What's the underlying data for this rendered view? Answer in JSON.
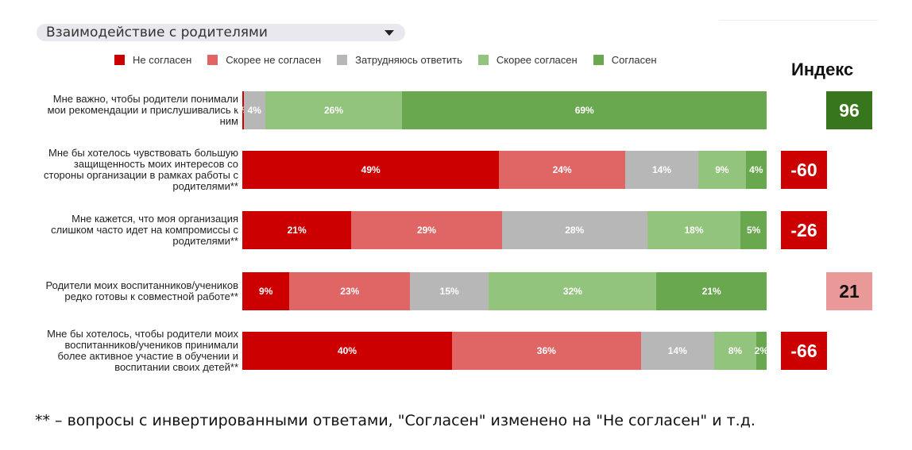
{
  "filter": {
    "selected": "Взаимодействие с родителями"
  },
  "colors": {
    "strongly_disagree": "#cc0000",
    "disagree": "#e06666",
    "neutral": "#b7b7b7",
    "agree": "#93c47d",
    "strongly_agree": "#6aa84f"
  },
  "chart_data": {
    "type": "bar",
    "orientation": "horizontal",
    "stacked": true,
    "normalized": true,
    "legend_position": "top",
    "grid": false,
    "categories": [
      "Мне важно, чтобы родители понимали мои рекомендации и прислушивались к ним",
      "Мне бы хотелось чувствовать большую защищенность моих интересов со стороны организации в рамках работы с родителями**",
      "Мне кажется, что моя организация слишком часто идет на компромиссы с родителями**",
      "Родители моих воспитанников/учеников редко готовы к совместной работе**",
      "Мне бы хотелось, чтобы родители моих воспитанников/учеников принимали более активное участие в обучении и воспитании своих детей**"
    ],
    "series": [
      {
        "name": "Не согласен",
        "color": "#cc0000",
        "values": [
          0,
          49,
          21,
          9,
          40
        ]
      },
      {
        "name": "Скорее не согласен",
        "color": "#e06666",
        "values": [
          0,
          24,
          29,
          23,
          36
        ]
      },
      {
        "name": "Затрудняюсь ответить",
        "color": "#b7b7b7",
        "values": [
          4,
          14,
          28,
          15,
          14
        ]
      },
      {
        "name": "Скорее согласен",
        "color": "#93c47d",
        "values": [
          26,
          9,
          18,
          32,
          8
        ]
      },
      {
        "name": "Согласен",
        "color": "#6aa84f",
        "values": [
          69,
          4,
          5,
          21,
          2
        ]
      }
    ],
    "data_labels": [
      [
        "0%",
        "0%",
        "4%",
        "26%",
        "69%"
      ],
      [
        "49%",
        "24%",
        "14%",
        "9%",
        "4%"
      ],
      [
        "21%",
        "29%",
        "28%",
        "18%",
        "5%"
      ],
      [
        "9%",
        "23%",
        "15%",
        "32%",
        "21%"
      ],
      [
        "40%",
        "36%",
        "14%",
        "8%",
        "2%"
      ]
    ],
    "index": {
      "title": "Индекс",
      "values": [
        96,
        -60,
        -26,
        21,
        -66
      ],
      "labels": [
        "96",
        "-60",
        "-26",
        "21",
        "-66"
      ],
      "colors": [
        "#38761d",
        "#cc0000",
        "#cc0000",
        "#ea9999",
        "#cc0000"
      ],
      "text_colors": [
        "#ffffff",
        "#ffffff",
        "#ffffff",
        "#111111",
        "#ffffff"
      ]
    }
  },
  "footnote": "** – вопросы с инвертированными ответами, \"Согласен\" изменено на \"Не согласен\" и т.д."
}
